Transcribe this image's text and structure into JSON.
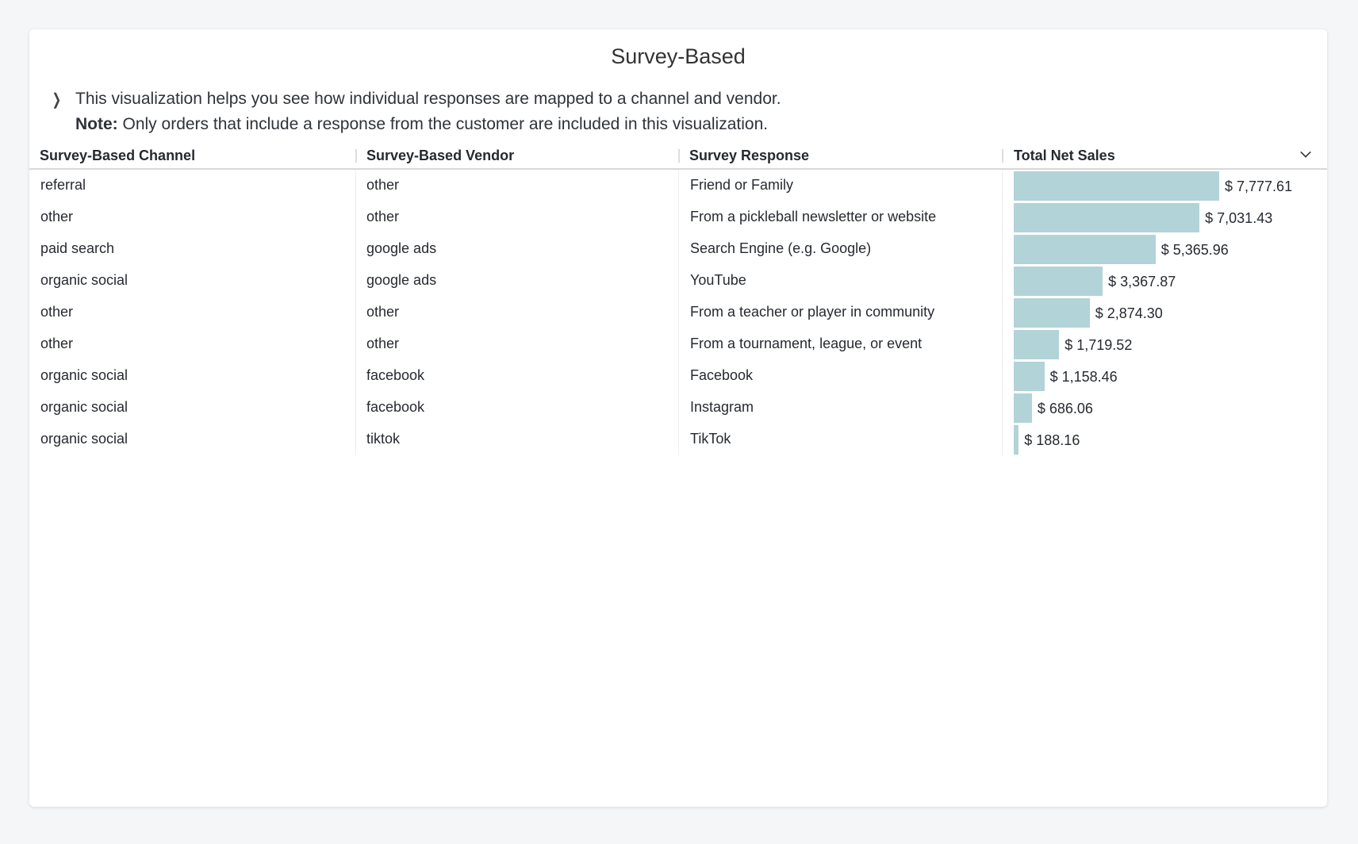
{
  "title": "Survey-Based",
  "description": {
    "line1": "This visualization helps you see how individual responses are mapped to a channel and vendor.",
    "note_label": "Note:",
    "note_text": " Only orders that include a response from the customer are included in this visualization."
  },
  "columns": [
    "Survey-Based Channel",
    "Survey-Based Vendor",
    "Survey Response",
    "Total Net Sales"
  ],
  "colors": {
    "bar": "#b2d3d8"
  },
  "rows": [
    {
      "channel": "referral",
      "vendor": "other",
      "response": "Friend or Family",
      "sales": 7777.61,
      "sales_label": "$ 7,777.61"
    },
    {
      "channel": "other",
      "vendor": "other",
      "response": "From a pickleball newsletter or website",
      "sales": 7031.43,
      "sales_label": "$ 7,031.43"
    },
    {
      "channel": "paid search",
      "vendor": "google ads",
      "response": "Search Engine (e.g. Google)",
      "sales": 5365.96,
      "sales_label": "$ 5,365.96"
    },
    {
      "channel": "organic social",
      "vendor": "google ads",
      "response": "YouTube",
      "sales": 3367.87,
      "sales_label": "$ 3,367.87"
    },
    {
      "channel": "other",
      "vendor": "other",
      "response": "From a teacher or player in community",
      "sales": 2874.3,
      "sales_label": "$ 2,874.30"
    },
    {
      "channel": "other",
      "vendor": "other",
      "response": "From a tournament, league, or event",
      "sales": 1719.52,
      "sales_label": "$ 1,719.52"
    },
    {
      "channel": "organic social",
      "vendor": "facebook",
      "response": "Facebook",
      "sales": 1158.46,
      "sales_label": "$ 1,158.46"
    },
    {
      "channel": "organic social",
      "vendor": "facebook",
      "response": "Instagram",
      "sales": 686.06,
      "sales_label": "$ 686.06"
    },
    {
      "channel": "organic social",
      "vendor": "tiktok",
      "response": "TikTok",
      "sales": 188.16,
      "sales_label": "$ 188.16"
    }
  ]
}
